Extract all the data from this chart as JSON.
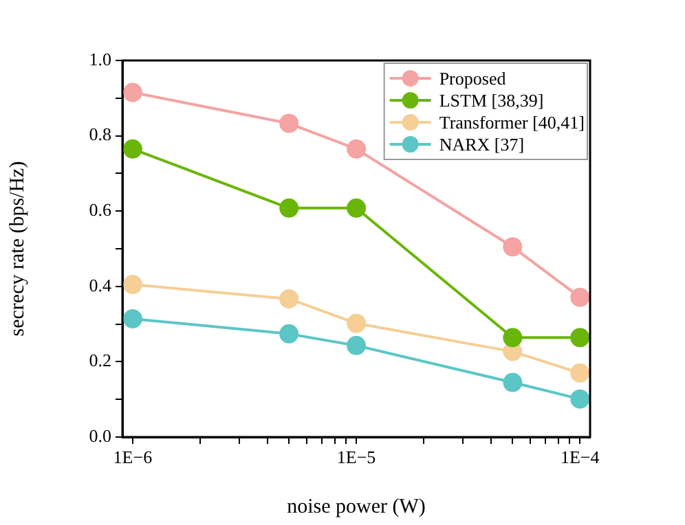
{
  "chart_data": {
    "type": "line",
    "xlabel": "noise power (W)",
    "ylabel": "secrecy rate (bps/Hz)",
    "x": [
      1e-06,
      5e-06,
      1e-05,
      5e-05,
      0.0001
    ],
    "series": [
      {
        "name": "Proposed",
        "color": "#f5a3a3",
        "values": [
          0.915,
          0.833,
          0.765,
          0.505,
          0.371
        ]
      },
      {
        "name": "LSTM [38,39]",
        "color": "#6ab50a",
        "values": [
          0.765,
          0.608,
          0.608,
          0.264,
          0.264
        ]
      },
      {
        "name": "Transformer [40,41]",
        "color": "#f5cf96",
        "values": [
          0.405,
          0.367,
          0.302,
          0.227,
          0.17
        ]
      },
      {
        "name": "NARX [37]",
        "color": "#5cc6c6",
        "values": [
          0.314,
          0.274,
          0.243,
          0.145,
          0.101
        ]
      }
    ],
    "log": "x",
    "xlim": [
      9e-07,
      0.000111
    ],
    "xticks": [
      {
        "value": 1e-06,
        "label": "1E−6"
      },
      {
        "value": 2e-06,
        "label": null
      },
      {
        "value": 3e-06,
        "label": null
      },
      {
        "value": 4e-06,
        "label": null
      },
      {
        "value": 5e-06,
        "label": null
      },
      {
        "value": 6e-06,
        "label": null
      },
      {
        "value": 7e-06,
        "label": null
      },
      {
        "value": 8e-06,
        "label": null
      },
      {
        "value": 9e-06,
        "label": null
      },
      {
        "value": 1e-05,
        "label": "1E−5"
      },
      {
        "value": 2e-05,
        "label": null
      },
      {
        "value": 3e-05,
        "label": null
      },
      {
        "value": 4e-05,
        "label": null
      },
      {
        "value": 5e-05,
        "label": null
      },
      {
        "value": 6e-05,
        "label": null
      },
      {
        "value": 7e-05,
        "label": null
      },
      {
        "value": 8e-05,
        "label": null
      },
      {
        "value": 9e-05,
        "label": null
      },
      {
        "value": 0.0001,
        "label": "1E−4"
      }
    ],
    "ylim": [
      0,
      1
    ],
    "yticks": [
      {
        "value": 0,
        "label": "0.0"
      },
      {
        "value": 0.1,
        "label": null
      },
      {
        "value": 0.2,
        "label": "0.2"
      },
      {
        "value": 0.3,
        "label": null
      },
      {
        "value": 0.4,
        "label": "0.4"
      },
      {
        "value": 0.5,
        "label": null
      },
      {
        "value": 0.6,
        "label": "0.6"
      },
      {
        "value": 0.7,
        "label": null
      },
      {
        "value": 0.8,
        "label": "0.8"
      },
      {
        "value": 0.9,
        "label": null
      },
      {
        "value": 1,
        "label": "1.0"
      }
    ],
    "grid": false,
    "legend": "top right",
    "marker": "circle",
    "line_style": "solid"
  }
}
